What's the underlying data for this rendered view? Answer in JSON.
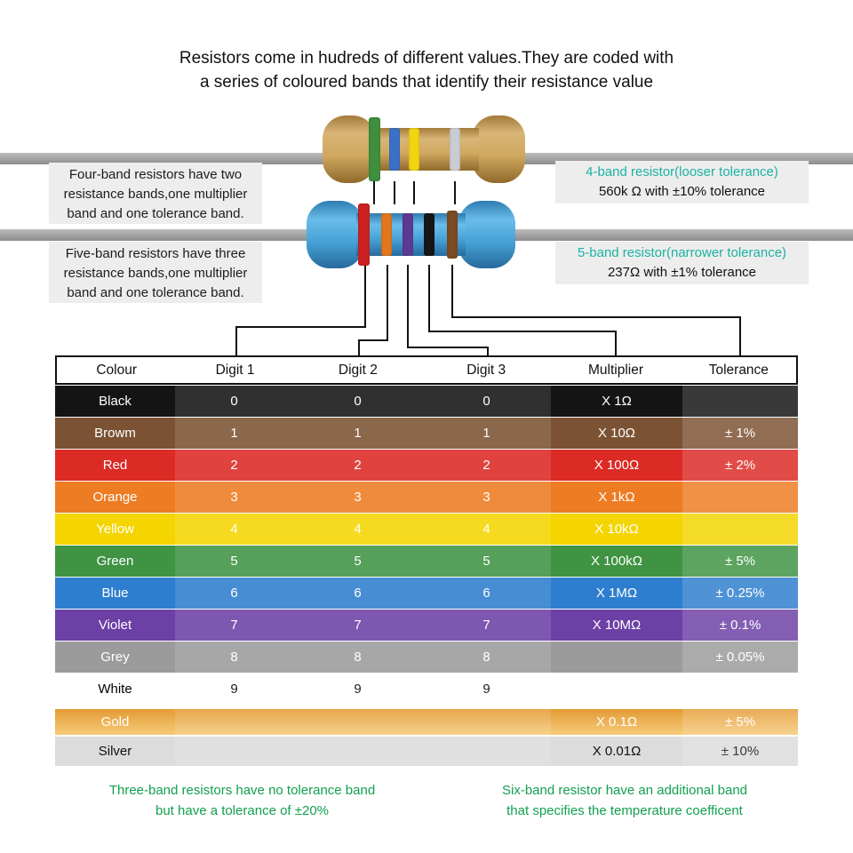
{
  "title": "Resistors come in hudreds of different values.They are coded with\na series of coloured bands that identify their resistance value",
  "notes": {
    "four_band_left": "Four-band resistors have two\nresistance bands,one multiplier\nband and one tolerance band.",
    "five_band_left": "Five-band resistors have three\nresistance bands,one multiplier\nband and one tolerance band.",
    "four_band_title": "4-band resistor(looser tolerance)",
    "four_band_value": "560k Ω with ±10% tolerance",
    "five_band_title": "5-band resistor(narrower tolerance)",
    "five_band_value": "237Ω with ±1% tolerance"
  },
  "footnotes": {
    "three_band": "Three-band resistors have no tolerance band\nbut have a tolerance of ±20%",
    "six_band": "Six-band resistor have an additional band\nthat specifies the temperature coefficent"
  },
  "table": {
    "headers": [
      "Colour",
      "Digit 1",
      "Digit 2",
      "Digit 3",
      "Multiplier",
      "Tolerance"
    ],
    "rows": [
      {
        "name": "Black",
        "d1": "0",
        "d2": "0",
        "d3": "0",
        "mult": "X 1Ω",
        "tol": "",
        "bg": "#141414",
        "fg": "#ffffff"
      },
      {
        "name": "Browm",
        "d1": "1",
        "d2": "1",
        "d3": "1",
        "mult": "X 10Ω",
        "tol": "± 1%",
        "bg": "#7b5233",
        "fg": "#ffffff"
      },
      {
        "name": "Red",
        "d1": "2",
        "d2": "2",
        "d3": "2",
        "mult": "X 100Ω",
        "tol": "± 2%",
        "bg": "#dc2a25",
        "fg": "#ffffff"
      },
      {
        "name": "Orange",
        "d1": "3",
        "d2": "3",
        "d3": "3",
        "mult": "X 1kΩ",
        "tol": "",
        "bg": "#ed7c23",
        "fg": "#ffffff"
      },
      {
        "name": "Yellow",
        "d1": "4",
        "d2": "4",
        "d3": "4",
        "mult": "X 10kΩ",
        "tol": "",
        "bg": "#f4d500",
        "fg": "#ffffff"
      },
      {
        "name": "Green",
        "d1": "5",
        "d2": "5",
        "d3": "5",
        "mult": "X 100kΩ",
        "tol": "± 5%",
        "bg": "#3f9342",
        "fg": "#ffffff"
      },
      {
        "name": "Blue",
        "d1": "6",
        "d2": "6",
        "d3": "6",
        "mult": "X 1MΩ",
        "tol": "± 0.25%",
        "bg": "#2e7ecf",
        "fg": "#ffffff"
      },
      {
        "name": "Violet",
        "d1": "7",
        "d2": "7",
        "d3": "7",
        "mult": "X 10MΩ",
        "tol": "± 0.1%",
        "bg": "#6c40a5",
        "fg": "#ffffff"
      },
      {
        "name": "Grey",
        "d1": "8",
        "d2": "8",
        "d3": "8",
        "mult": "",
        "tol": "± 0.05%",
        "bg": "#9b9b9b",
        "fg": "#ffffff"
      },
      {
        "name": "White",
        "d1": "9",
        "d2": "9",
        "d3": "9",
        "mult": "",
        "tol": "",
        "bg": "#ffffff",
        "fg": "#000000"
      },
      {
        "name": "Gold",
        "d1": "",
        "d2": "",
        "d3": "",
        "mult": "X 0.1Ω",
        "tol": "± 5%",
        "bg": "gold-gradient",
        "fg": "#ffffff"
      },
      {
        "name": "Silver",
        "d1": "",
        "d2": "",
        "d3": "",
        "mult": "X 0.01Ω",
        "tol": "± 10%",
        "bg": "#dcdcdc",
        "fg": "#111111"
      }
    ]
  },
  "resistors": {
    "four_band": {
      "body_color": "#c79a52",
      "bands": [
        "green",
        "blue",
        "yellow",
        "silver"
      ],
      "band_colors": [
        "#3e8f3e",
        "#3a70c8",
        "#f2d411",
        "#c9cdd1"
      ]
    },
    "five_band": {
      "body_color": "#49a4da",
      "bands": [
        "red",
        "orange",
        "violet",
        "black",
        "brown"
      ],
      "band_colors": [
        "#cc2222",
        "#e2761b",
        "#5c3a94",
        "#161616",
        "#7d4b21"
      ]
    }
  },
  "colors": {
    "caption_teal": "#1bb3a2",
    "footnote_green": "#12a04e",
    "lead_gray": "#a5a5a5",
    "note_box_bg": "#ededed"
  }
}
